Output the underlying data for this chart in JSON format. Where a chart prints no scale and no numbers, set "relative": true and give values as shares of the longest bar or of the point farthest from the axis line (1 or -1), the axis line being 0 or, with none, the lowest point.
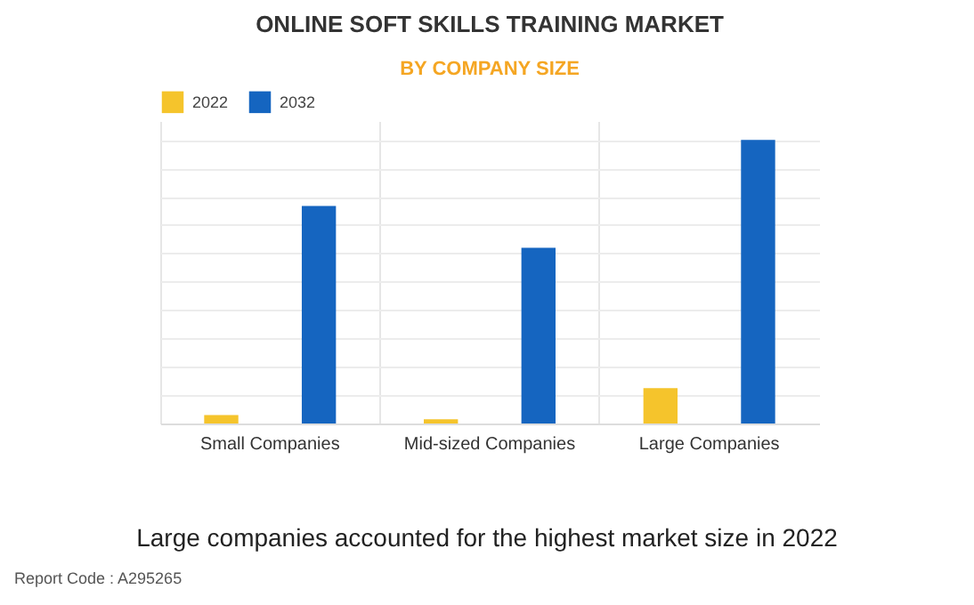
{
  "chart_data": {
    "type": "bar",
    "title": "ONLINE SOFT SKILLS TRAINING MARKET",
    "subtitle": "BY COMPANY SIZE",
    "categories": [
      "Small Companies",
      "Mid-sized Companies",
      "Large Companies"
    ],
    "series": [
      {
        "name": "2022",
        "color": "#f5c42c",
        "values": [
          0.03,
          0.015,
          0.125
        ]
      },
      {
        "name": "2032",
        "color": "#1565c0",
        "values": [
          0.767,
          0.62,
          1
        ]
      }
    ],
    "relative": true,
    "grid": true,
    "legend": "top",
    "annotations": [
      "Large companies accounted for the highest market size in 2022",
      "Report Code : A295265"
    ]
  }
}
